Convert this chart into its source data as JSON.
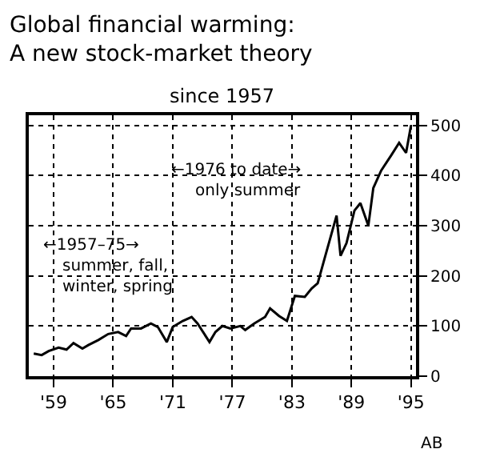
{
  "chart_data": {
    "type": "line",
    "title": "Global financial warming:\nA new stock-market theory",
    "subtitle": "since 1957",
    "x": [
      1957,
      1957.8,
      1958.5,
      1959.5,
      1960.3,
      1961,
      1961.9,
      1962.5,
      1963.5,
      1964.5,
      1965.5,
      1966.3,
      1966.8,
      1967.8,
      1968.8,
      1969.5,
      1970.4,
      1971,
      1972,
      1972.9,
      1973.5,
      1974.7,
      1975.3,
      1976,
      1976.8,
      1977.8,
      1978.3,
      1979.2,
      1980.3,
      1980.8,
      1981.7,
      1982.5,
      1983.3,
      1984.3,
      1985,
      1985.6,
      1986.3,
      1987.5,
      1987.9,
      1988.5,
      1989.3,
      1989.9,
      1990.7,
      1991.2,
      1992,
      1993,
      1993.8,
      1994.5,
      1995
    ],
    "values": [
      45,
      42,
      50,
      57,
      53,
      66,
      55,
      62,
      72,
      84,
      88,
      80,
      95,
      95,
      105,
      98,
      68,
      98,
      110,
      118,
      105,
      68,
      88,
      100,
      95,
      100,
      92,
      105,
      118,
      135,
      120,
      110,
      160,
      158,
      175,
      185,
      235,
      320,
      240,
      265,
      330,
      345,
      300,
      375,
      410,
      440,
      465,
      445,
      500
    ],
    "color": "#000000",
    "xlim": [
      1956.5,
      1995.5
    ],
    "xticks": [
      {
        "value": 1959,
        "label": "'59"
      },
      {
        "value": 1965,
        "label": "'65"
      },
      {
        "value": 1971,
        "label": "'71"
      },
      {
        "value": 1977,
        "label": "'77"
      },
      {
        "value": 1983,
        "label": "'83"
      },
      {
        "value": 1989,
        "label": "'89"
      },
      {
        "value": 1995,
        "label": "'95"
      }
    ],
    "ylim": [
      0,
      520
    ],
    "yticks": [
      0,
      100,
      200,
      300,
      400,
      500
    ],
    "grid": true,
    "marker": "none",
    "line_style": "solid",
    "annotations": [
      "←1957–75→",
      "summer, fall,\nwinter, spring",
      "←1976 to date→",
      "only summer",
      "AB"
    ]
  }
}
